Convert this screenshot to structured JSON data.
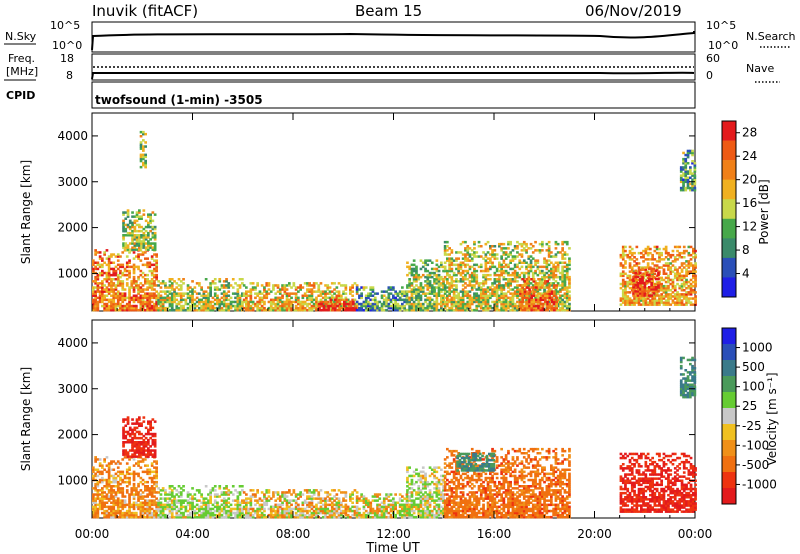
{
  "header": {
    "radar": "Inuvik (fitACF)",
    "beam": "Beam 15",
    "date": "06/Nov/2019"
  },
  "top_panels": {
    "nsky_label": "N.Sky",
    "nsky_ticks": [
      "10^5",
      "10^0"
    ],
    "nsearch_label": "N.Search",
    "nsearch_ticks": [
      "10^5",
      "10^0"
    ],
    "freq_label_line1": "Freq.",
    "freq_label_line2": "[MHz]",
    "freq_ticks": [
      "18",
      "8"
    ],
    "nave_label": "Nave",
    "nave_ticks": [
      "60",
      "0"
    ],
    "cpid_label": "CPID",
    "cpid_text": "twofsound (1-min) -3505"
  },
  "colors": {
    "power_scale": [
      "#1f1fe6",
      "#2a4fb8",
      "#3a8a6a",
      "#47a84a",
      "#c8d84a",
      "#f0b020",
      "#f08018",
      "#ee5a14",
      "#e31a1c"
    ],
    "velocity_scale": [
      "#1f1fe6",
      "#2a4fb8",
      "#3a7a8a",
      "#4a9a5a",
      "#66cc33",
      "#c8c8c8",
      "#f0c020",
      "#f09018",
      "#f07010",
      "#ee3310",
      "#e31a1c"
    ]
  },
  "chart_data": [
    {
      "type": "heatmap",
      "title": "",
      "xlabel": "Time UT",
      "ylabel": "Slant Range [km]",
      "x_ticks": [
        "00:00",
        "04:00",
        "08:00",
        "12:00",
        "16:00",
        "20:00",
        "00:00"
      ],
      "xlim": [
        0,
        24
      ],
      "ylim": [
        180,
        4500
      ],
      "y_ticks": [
        1000,
        2000,
        3000,
        4000
      ],
      "colorbar_label": "Power [dB]",
      "colorbar_ticks": [
        4,
        8,
        12,
        16,
        20,
        24,
        28
      ],
      "colorbar_range": [
        0,
        30
      ],
      "echo_regions": [
        {
          "t": [
            0.0,
            2.6
          ],
          "r": [
            180,
            1500
          ],
          "value": 22
        },
        {
          "t": [
            1.2,
            2.5
          ],
          "r": [
            1500,
            2400
          ],
          "value": 14
        },
        {
          "t": [
            2.6,
            6.0
          ],
          "r": [
            180,
            900
          ],
          "value": 15
        },
        {
          "t": [
            6.0,
            10.5
          ],
          "r": [
            180,
            800
          ],
          "value": 18
        },
        {
          "t": [
            9.0,
            10.5
          ],
          "r": [
            180,
            420
          ],
          "value": 28
        },
        {
          "t": [
            10.5,
            12.5
          ],
          "r": [
            180,
            700
          ],
          "value": 10
        },
        {
          "t": [
            12.5,
            14.0
          ],
          "r": [
            180,
            1300
          ],
          "value": 14
        },
        {
          "t": [
            14.0,
            19.0
          ],
          "r": [
            180,
            1700
          ],
          "value": 16
        },
        {
          "t": [
            17.0,
            18.5
          ],
          "r": [
            180,
            900
          ],
          "value": 24
        },
        {
          "t": [
            21.0,
            24.0
          ],
          "r": [
            300,
            1600
          ],
          "value": 20
        },
        {
          "t": [
            21.5,
            22.5
          ],
          "r": [
            500,
            1100
          ],
          "value": 28
        },
        {
          "t": [
            23.4,
            24.0
          ],
          "r": [
            2800,
            3700
          ],
          "value": 10
        },
        {
          "t": [
            1.9,
            2.1
          ],
          "r": [
            3300,
            4100
          ],
          "value": 14
        }
      ]
    },
    {
      "type": "heatmap",
      "title": "",
      "xlabel": "Time UT",
      "ylabel": "Slant Range [km]",
      "x_ticks": [
        "00:00",
        "04:00",
        "08:00",
        "12:00",
        "16:00",
        "20:00",
        "00:00"
      ],
      "xlim": [
        0,
        24
      ],
      "ylim": [
        180,
        4500
      ],
      "y_ticks": [
        1000,
        2000,
        3000,
        4000
      ],
      "colorbar_label": "Velocity [m s⁻¹]",
      "colorbar_ticks": [
        1000,
        500,
        100,
        25,
        -25,
        -100,
        -500,
        -1000
      ],
      "echo_regions": [
        {
          "t": [
            0.0,
            2.6
          ],
          "r": [
            180,
            1500
          ],
          "value": -100
        },
        {
          "t": [
            1.2,
            2.5
          ],
          "r": [
            1500,
            2400
          ],
          "value": -500
        },
        {
          "t": [
            2.6,
            6.0
          ],
          "r": [
            180,
            900
          ],
          "value": 100
        },
        {
          "t": [
            6.0,
            10.5
          ],
          "r": [
            180,
            800
          ],
          "value": 0
        },
        {
          "t": [
            10.5,
            12.5
          ],
          "r": [
            180,
            700
          ],
          "value": 25
        },
        {
          "t": [
            12.5,
            14.0
          ],
          "r": [
            180,
            1300
          ],
          "value": 100
        },
        {
          "t": [
            14.0,
            19.0
          ],
          "r": [
            180,
            1700
          ],
          "value": -200
        },
        {
          "t": [
            14.5,
            16.0
          ],
          "r": [
            1200,
            1600
          ],
          "value": 500
        },
        {
          "t": [
            21.0,
            24.0
          ],
          "r": [
            300,
            1600
          ],
          "value": -500
        },
        {
          "t": [
            23.4,
            24.0
          ],
          "r": [
            2800,
            3700
          ],
          "value": 500
        }
      ]
    }
  ]
}
